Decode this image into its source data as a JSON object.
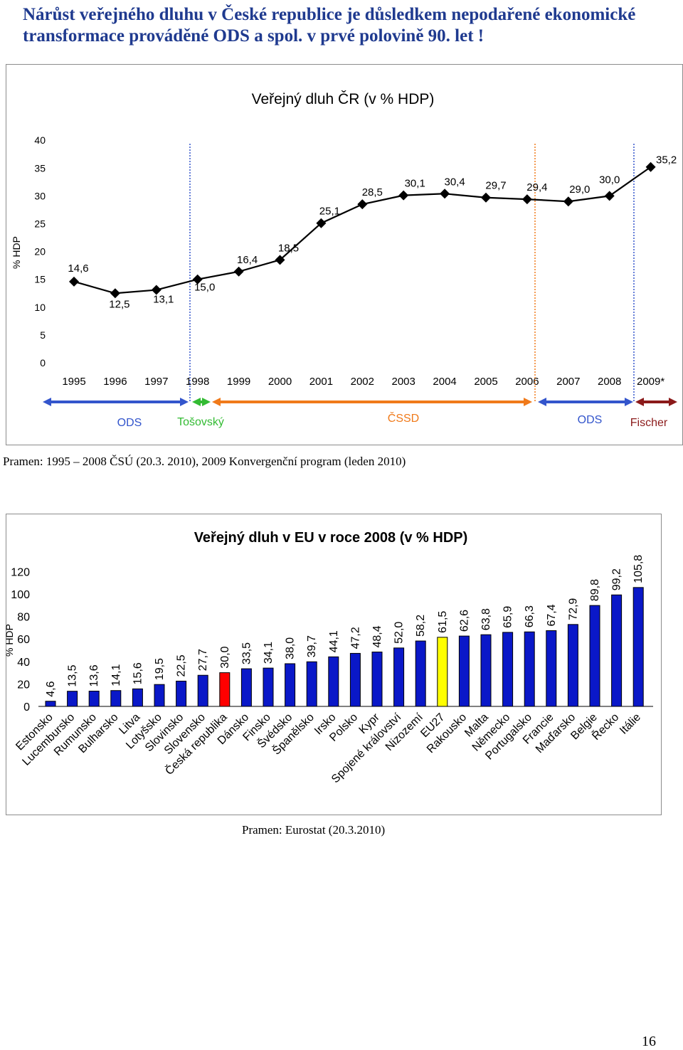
{
  "headline": "Nárůst veřejného dluhu v České republice je důsledkem nepodařené ekonomické transformace prováděné ODS a spol.  v prvé polovině 90. let !",
  "chart_data": [
    {
      "type": "line",
      "title": "Veřejný dluh ČR (v % HDP)",
      "ylabel": "% HDP",
      "xlabel": "",
      "ylim": [
        0,
        40
      ],
      "yticks": [
        "0",
        "5",
        "10",
        "15",
        "20",
        "25",
        "30",
        "35",
        "40"
      ],
      "categories": [
        "1995",
        "1996",
        "1997",
        "1998",
        "1999",
        "2000",
        "2001",
        "2002",
        "2003",
        "2004",
        "2005",
        "2006",
        "2007",
        "2008",
        "2009*"
      ],
      "values": [
        14.6,
        12.5,
        13.1,
        15.0,
        16.4,
        18.5,
        25.1,
        28.5,
        30.1,
        30.4,
        29.7,
        29.4,
        29.0,
        30.0,
        35.2
      ],
      "labels": [
        "14,6",
        "12,5",
        "13,1",
        "15,0",
        "16,4",
        "18,5",
        "25,1",
        "28,5",
        "30,1",
        "30,4",
        "29,7",
        "29,4",
        "29,0",
        "30,0",
        "35,2"
      ],
      "periods": [
        {
          "label": "ODS",
          "color": "#3355cc"
        },
        {
          "label": "Tošovský",
          "color": "#33bb33"
        },
        {
          "label": "ČSSD",
          "color": "#f07a1a"
        },
        {
          "label": "ODS",
          "color": "#3355cc"
        },
        {
          "label": "Fischer",
          "color": "#8b1a1a"
        }
      ]
    },
    {
      "type": "bar",
      "title": "Veřejný dluh v EU v roce 2008 (v % HDP)",
      "ylabel": "% HDP",
      "xlabel": "",
      "ylim": [
        0,
        120
      ],
      "yticks": [
        "0",
        "20",
        "40",
        "60",
        "80",
        "100",
        "120"
      ],
      "categories": [
        "Estonsko",
        "Lucembursko",
        "Rumunsko",
        "Bulharsko",
        "Litva",
        "Lotyšsko",
        "Slovinsko",
        "Slovensko",
        "Česká republika",
        "Dánsko",
        "Finsko",
        "Švédsko",
        "Španělsko",
        "Irsko",
        "Polsko",
        "Kypr",
        "Spojené království",
        "Nizozemí",
        "EU27",
        "Rakousko",
        "Malta",
        "Německo",
        "Portugalsko",
        "Francie",
        "Maďarsko",
        "Belgie",
        "Řecko",
        "Itálie"
      ],
      "values": [
        4.6,
        13.5,
        13.6,
        14.1,
        15.6,
        19.5,
        22.5,
        27.7,
        30.0,
        33.5,
        34.1,
        38.0,
        39.7,
        44.1,
        47.2,
        48.4,
        52.0,
        58.2,
        61.5,
        62.6,
        63.8,
        65.9,
        66.3,
        67.4,
        72.9,
        89.8,
        99.2,
        105.8
      ],
      "labels": [
        "4,6",
        "13,5",
        "13,6",
        "14,1",
        "15,6",
        "19,5",
        "22,5",
        "27,7",
        "30,0",
        "33,5",
        "34,1",
        "38,0",
        "39,7",
        "44,1",
        "47,2",
        "48,4",
        "52,0",
        "58,2",
        "61,5",
        "62,6",
        "63,8",
        "65,9",
        "66,3",
        "67,4",
        "72,9",
        "89,8",
        "99,2",
        "105,8"
      ],
      "colors": {
        "default": "#0a18c8",
        "Česká republika": "#ff0000",
        "EU27": "#ffff00"
      }
    }
  ],
  "source1": "Pramen: 1995 – 2008 ČSÚ (20.3. 2010), 2009 Konvergenční program (leden 2010)",
  "source2": "Pramen: Eurostat (20.3.2010)",
  "page_number": "16"
}
